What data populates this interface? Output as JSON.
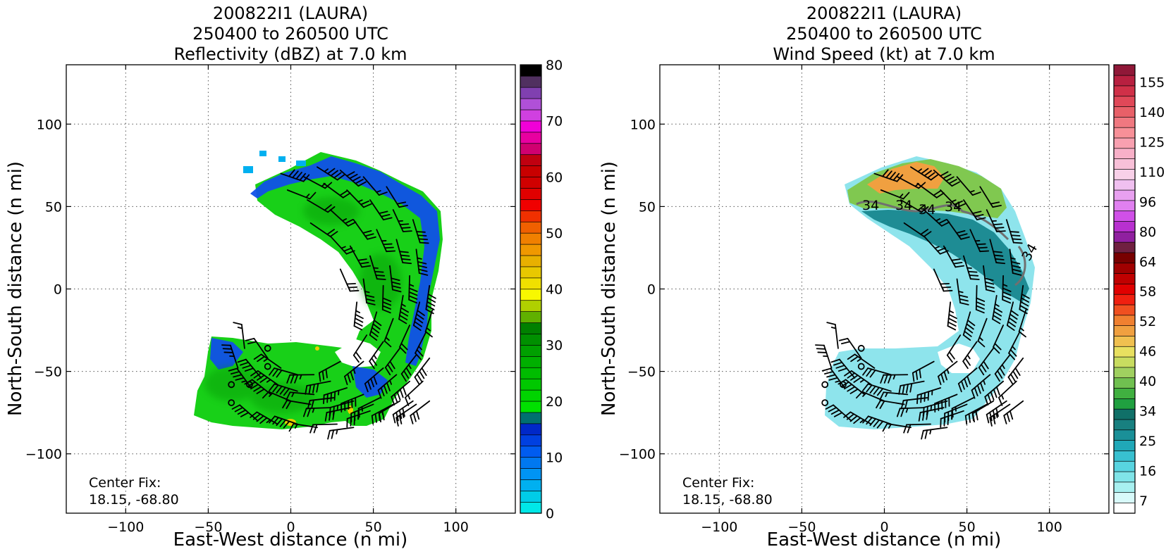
{
  "chart_data": [
    {
      "type": "heatmap",
      "title": [
        "200822I1 (LAURA)",
        "250400 to 260500 UTC",
        "Reflectivity (dBZ) at 7.0 km"
      ],
      "xlabel": "East-West distance (n mi)",
      "ylabel": "North-South distance (n mi)",
      "xlim": [
        -136,
        136
      ],
      "ylim": [
        -136,
        136
      ],
      "xticks": [
        -100,
        -50,
        0,
        50,
        100
      ],
      "yticks": [
        -100,
        -50,
        0,
        50,
        100
      ],
      "grid": true,
      "annotation": [
        "Center Fix:",
        "18.15, -68.80"
      ],
      "colorbar": {
        "min": 0,
        "max": 80,
        "tick_labels": [
          "0",
          "10",
          "20",
          "30",
          "40",
          "50",
          "60",
          "70",
          "80"
        ],
        "colors": [
          "#00e8e8",
          "#00cce8",
          "#00b0f0",
          "#0094f4",
          "#0078f0",
          "#005cf0",
          "#0040e0",
          "#0028c8",
          "#007070",
          "#00e000",
          "#00d400",
          "#00c800",
          "#00bc00",
          "#00b000",
          "#00a000",
          "#009000",
          "#008000",
          "#60b000",
          "#b0d000",
          "#f8f800",
          "#f0e000",
          "#e8c800",
          "#e8b000",
          "#f09800",
          "#f08000",
          "#f06000",
          "#f03000",
          "#f00000",
          "#e00000",
          "#d00000",
          "#c80000",
          "#c00010",
          "#d00070",
          "#e800a0",
          "#f000d8",
          "#d040e0",
          "#b050d8",
          "#8040b0",
          "#503060",
          "#000000"
        ]
      },
      "barb_speeds_kt": [
        15,
        20,
        25,
        30,
        35,
        40,
        45,
        50
      ]
    },
    {
      "type": "heatmap",
      "title": [
        "200822I1 (LAURA)",
        "250400 to 260500 UTC",
        "Wind Speed (kt) at 7.0 km"
      ],
      "xlabel": "East-West distance (n mi)",
      "ylabel": "North-South distance (n mi)",
      "xlim": [
        -136,
        136
      ],
      "ylim": [
        -136,
        136
      ],
      "xticks": [
        -100,
        -50,
        0,
        50,
        100
      ],
      "yticks": [
        -100,
        -50,
        0,
        50,
        100
      ],
      "grid": true,
      "annotation": [
        "Center Fix:",
        "18.15, -68.80"
      ],
      "contour_labels": [
        "34",
        "34",
        "34",
        "34",
        "34"
      ],
      "colorbar": {
        "min": 4,
        "max": 160,
        "tick_labels": [
          "7",
          "16",
          "25",
          "34",
          "40",
          "46",
          "52",
          "58",
          "64",
          "80",
          "96",
          "110",
          "125",
          "140",
          "155"
        ],
        "colors": [
          "#ffffff",
          "#d8fafa",
          "#a8f0f0",
          "#80e4e8",
          "#58d4e0",
          "#38c0d0",
          "#20a8b8",
          "#1a9098",
          "#188080",
          "#107068",
          "#20a040",
          "#40b040",
          "#70c050",
          "#a0d060",
          "#c8dc60",
          "#e8e060",
          "#f0c050",
          "#f0a040",
          "#f08030",
          "#f05020",
          "#f02010",
          "#e00000",
          "#c00000",
          "#a00000",
          "#780000",
          "#702040",
          "#9020a0",
          "#b830d0",
          "#d050e8",
          "#e080f0",
          "#e8a0f0",
          "#f0c0f0",
          "#f8d0e8",
          "#f8c0d8",
          "#f8b0c8",
          "#f8a0b0",
          "#f89098",
          "#f07880",
          "#e86068",
          "#e04858",
          "#d03048",
          "#b82040",
          "#901838"
        ]
      },
      "barb_speeds_kt": [
        15,
        20,
        25,
        30,
        35,
        40,
        45,
        50
      ]
    }
  ]
}
